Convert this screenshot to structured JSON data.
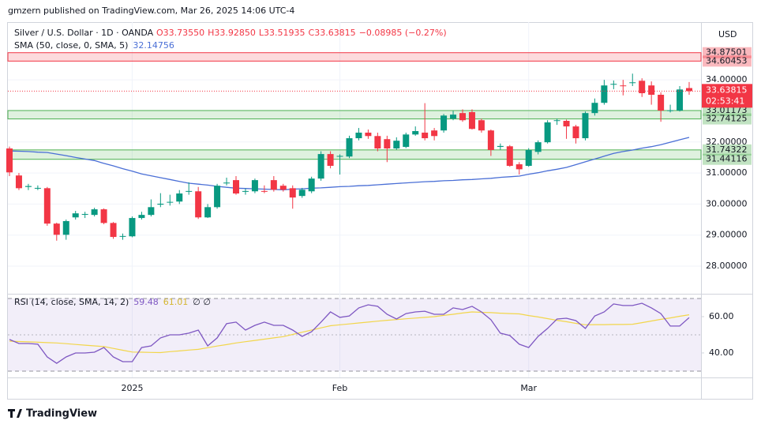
{
  "header": {
    "published": "gmzern published on TradingView.com, Mar 26, 2025 14:06 UTC-4",
    "symbol": "Silver / U.S. Dollar · 1D · OANDA",
    "open": "O33.73550",
    "high": "H33.92850",
    "low": "L33.51935",
    "close": "C33.63815",
    "change": "−0.08985 (−0.27%)",
    "currency": "USD",
    "countdown": "02:53:41",
    "brand": "TradingView"
  },
  "chart_data": {
    "type": "candlestick",
    "up_color": "#089981",
    "down_color": "#f23645",
    "categories": [
      null,
      null,
      null,
      null,
      null,
      null,
      null,
      null,
      null,
      null,
      null,
      null,
      null,
      "2025",
      null,
      null,
      null,
      null,
      null,
      null,
      null,
      null,
      null,
      null,
      null,
      null,
      null,
      null,
      null,
      null,
      null,
      null,
      null,
      null,
      null,
      "Feb",
      null,
      null,
      null,
      null,
      null,
      null,
      null,
      null,
      null,
      null,
      null,
      null,
      null,
      null,
      null,
      null,
      null,
      null,
      null,
      "Mar",
      null,
      null,
      null,
      null,
      null,
      null,
      null,
      null,
      null,
      null,
      null,
      null,
      null,
      null,
      null,
      null,
      null
    ],
    "ohlc": [
      [
        31.79,
        31.85,
        30.9,
        31.02
      ],
      [
        30.92,
        31.0,
        30.45,
        30.51
      ],
      [
        30.55,
        30.65,
        30.45,
        30.58
      ],
      [
        30.5,
        30.6,
        30.45,
        30.52
      ],
      [
        30.51,
        30.55,
        29.3,
        29.37
      ],
      [
        29.37,
        29.4,
        28.82,
        29.01
      ],
      [
        29.01,
        29.5,
        28.85,
        29.45
      ],
      [
        29.57,
        29.78,
        29.5,
        29.7
      ],
      [
        29.66,
        29.75,
        29.55,
        29.68
      ],
      [
        29.65,
        29.88,
        29.6,
        29.83
      ],
      [
        29.83,
        29.86,
        29.35,
        29.39
      ],
      [
        29.39,
        29.42,
        28.88,
        28.94
      ],
      [
        28.95,
        29.05,
        28.85,
        28.97
      ],
      [
        28.96,
        29.6,
        28.93,
        29.55
      ],
      [
        29.55,
        29.75,
        29.5,
        29.65
      ],
      [
        29.65,
        30.15,
        29.6,
        29.9
      ],
      [
        29.98,
        30.35,
        29.9,
        30.01
      ],
      [
        30.05,
        30.3,
        29.95,
        30.07
      ],
      [
        30.08,
        30.45,
        30.0,
        30.34
      ],
      [
        30.4,
        30.7,
        30.3,
        30.42
      ],
      [
        30.41,
        30.55,
        29.52,
        29.57
      ],
      [
        29.57,
        30.0,
        29.55,
        29.9
      ],
      [
        29.9,
        30.65,
        29.85,
        30.59
      ],
      [
        30.67,
        30.85,
        30.6,
        30.69
      ],
      [
        30.77,
        30.9,
        30.3,
        30.34
      ],
      [
        30.4,
        30.5,
        30.3,
        30.42
      ],
      [
        30.41,
        30.82,
        30.35,
        30.77
      ],
      [
        30.42,
        30.6,
        30.35,
        30.4
      ],
      [
        30.77,
        30.9,
        30.4,
        30.46
      ],
      [
        30.59,
        30.65,
        30.4,
        30.46
      ],
      [
        30.51,
        30.6,
        29.85,
        30.21
      ],
      [
        30.26,
        30.52,
        30.2,
        30.46
      ],
      [
        30.41,
        30.88,
        30.35,
        30.82
      ],
      [
        30.82,
        31.7,
        30.75,
        31.61
      ],
      [
        31.61,
        31.7,
        31.15,
        31.23
      ],
      [
        31.53,
        31.6,
        30.95,
        31.55
      ],
      [
        31.53,
        32.2,
        31.48,
        32.12
      ],
      [
        32.12,
        32.45,
        32.05,
        32.3
      ],
      [
        32.3,
        32.4,
        32.1,
        32.19
      ],
      [
        32.19,
        32.3,
        31.7,
        31.79
      ],
      [
        32.09,
        32.2,
        31.35,
        31.79
      ],
      [
        31.79,
        32.15,
        31.75,
        32.04
      ],
      [
        31.84,
        32.3,
        31.8,
        32.24
      ],
      [
        32.24,
        32.5,
        32.2,
        32.35
      ],
      [
        32.3,
        33.25,
        32.05,
        32.12
      ],
      [
        32.37,
        32.45,
        32.05,
        32.19
      ],
      [
        32.37,
        32.9,
        32.3,
        32.85
      ],
      [
        32.75,
        33.0,
        32.7,
        32.88
      ],
      [
        32.93,
        33.05,
        32.65,
        32.7
      ],
      [
        32.96,
        33.05,
        32.4,
        32.42
      ],
      [
        32.7,
        32.75,
        32.3,
        32.37
      ],
      [
        32.37,
        32.4,
        31.55,
        31.74
      ],
      [
        31.84,
        31.95,
        31.75,
        31.87
      ],
      [
        31.86,
        31.9,
        31.2,
        31.23
      ],
      [
        31.28,
        31.35,
        30.95,
        31.12
      ],
      [
        31.23,
        31.8,
        31.2,
        31.74
      ],
      [
        31.68,
        32.05,
        31.6,
        31.99
      ],
      [
        31.99,
        32.7,
        31.95,
        32.63
      ],
      [
        32.68,
        32.75,
        32.55,
        32.7
      ],
      [
        32.68,
        32.72,
        32.1,
        32.5
      ],
      [
        32.5,
        32.55,
        31.95,
        32.12
      ],
      [
        32.12,
        32.98,
        32.05,
        32.93
      ],
      [
        32.93,
        33.4,
        32.85,
        33.26
      ],
      [
        33.26,
        34.0,
        33.2,
        33.82
      ],
      [
        33.85,
        33.98,
        33.7,
        33.87
      ],
      [
        33.82,
        34.0,
        33.5,
        33.8
      ],
      [
        33.9,
        34.2,
        33.8,
        33.92
      ],
      [
        33.97,
        34.05,
        33.45,
        33.57
      ],
      [
        33.82,
        33.95,
        33.2,
        33.52
      ],
      [
        33.52,
        33.6,
        32.65,
        33.01
      ],
      [
        33.0,
        33.2,
        32.95,
        33.02
      ],
      [
        33.01,
        33.8,
        32.98,
        33.69
      ],
      [
        33.7355,
        33.9285,
        33.51935,
        33.63815
      ]
    ],
    "sma": {
      "name": "SMA (50, close, 0, SMA, 5)",
      "color": "#4a6fd6",
      "values": [
        31.71,
        31.7,
        31.69,
        31.67,
        31.66,
        31.61,
        31.56,
        31.5,
        31.45,
        31.4,
        31.31,
        31.23,
        31.14,
        31.06,
        30.97,
        30.91,
        30.85,
        30.79,
        30.73,
        30.67,
        30.64,
        30.61,
        30.57,
        30.54,
        30.51,
        30.5,
        30.49,
        30.48,
        30.47,
        30.46,
        30.48,
        30.49,
        30.51,
        30.52,
        30.54,
        30.56,
        30.57,
        30.59,
        30.6,
        30.62,
        30.64,
        30.66,
        30.68,
        30.7,
        30.72,
        30.73,
        30.75,
        30.76,
        30.78,
        30.79,
        30.81,
        30.83,
        30.86,
        30.88,
        30.9,
        30.96,
        31.01,
        31.07,
        31.12,
        31.18,
        31.27,
        31.36,
        31.45,
        31.54,
        31.63,
        31.69,
        31.74,
        31.8,
        31.85,
        31.91,
        31.99,
        32.07,
        32.14756
      ]
    },
    "ylim": [
      27.11,
      35.86
    ],
    "yticks": [
      {
        "value": 28,
        "label": "28.00000"
      },
      {
        "value": 29,
        "label": "29.00000"
      },
      {
        "value": 30,
        "label": "30.00000"
      },
      {
        "value": 31,
        "label": "31.00000"
      },
      {
        "value": 32,
        "label": "32.00000"
      },
      {
        "value": 34,
        "label": "34.00000"
      }
    ],
    "zones": [
      {
        "top": 34.87501,
        "bottom": 34.60453,
        "color": "#f23645"
      },
      {
        "top": 33.01173,
        "bottom": 32.74125,
        "color": "#4caf50"
      },
      {
        "top": 31.74322,
        "bottom": 31.44116,
        "color": "#4caf50"
      }
    ],
    "last_price": 33.63815,
    "rsi": {
      "name": "RSI (14, close, SMA, 14, 2)",
      "color": "#7e57c2",
      "values": [
        47.4,
        45.2,
        45.2,
        44.8,
        37.8,
        34.3,
        37.8,
        40.0,
        40.0,
        40.4,
        43.0,
        37.8,
        35.2,
        35.2,
        43.0,
        43.9,
        48.3,
        50.0,
        50.0,
        50.9,
        52.6,
        43.9,
        48.3,
        56.1,
        57.0,
        52.6,
        55.2,
        57.0,
        55.2,
        55.2,
        52.6,
        49.1,
        51.7,
        57.0,
        62.6,
        59.6,
        60.4,
        64.8,
        66.5,
        65.7,
        61.3,
        58.7,
        61.7,
        62.6,
        63.0,
        61.3,
        61.3,
        64.8,
        63.9,
        65.7,
        62.6,
        58.3,
        50.9,
        49.6,
        44.8,
        43.0,
        49.1,
        53.5,
        58.7,
        59.1,
        57.8,
        53.5,
        60.4,
        62.6,
        67.0,
        66.1,
        66.1,
        67.4,
        64.8,
        61.7,
        54.8,
        54.8,
        59.48
      ]
    },
    "rsi_sma": {
      "color": "#f2d64b",
      "values": [
        46.5,
        46.3,
        46.1,
        45.9,
        45.7,
        45.5,
        45.1,
        44.7,
        44.3,
        43.9,
        43.5,
        42.5,
        41.5,
        40.5,
        40.4,
        40.3,
        40.2,
        40.7,
        41.1,
        41.6,
        42.0,
        42.9,
        43.8,
        44.6,
        45.5,
        46.2,
        46.9,
        47.6,
        48.3,
        49.0,
        50.2,
        51.4,
        52.6,
        53.8,
        55.0,
        55.5,
        56.0,
        56.5,
        57.0,
        57.5,
        58.0,
        58.4,
        58.8,
        59.2,
        59.6,
        60.0,
        60.7,
        61.3,
        62.0,
        62.6,
        62.4,
        62.2,
        61.9,
        61.7,
        61.5,
        60.6,
        59.8,
        58.9,
        58.0,
        57.2,
        56.3,
        55.5,
        55.6,
        55.6,
        55.7,
        55.7,
        55.8,
        56.7,
        57.6,
        58.5,
        59.3,
        60.2,
        61.01
      ]
    },
    "rsi_extra": "∅ ∅",
    "rsi_ylim": [
      26.5,
      72.6
    ],
    "rsi_yticks": [
      {
        "value": 40,
        "label": "40.00"
      },
      {
        "value": 60,
        "label": "60.00"
      }
    ],
    "rsi_bands": [
      70,
      50,
      30
    ]
  }
}
